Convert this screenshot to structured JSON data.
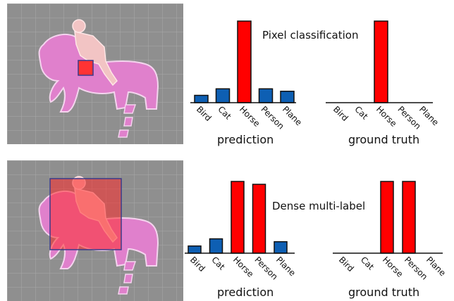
{
  "colors": {
    "background_gray": "#8f8f8f",
    "grid": "#a8a8a8",
    "horse_mask": "#e080cc",
    "person_mask": "#f2c4c4",
    "pixel_box": "#ff3333",
    "dense_box": "#ff2a2a",
    "box_outline": "#3a3a8a",
    "blue_bar": "#0e5fb3",
    "red_bar": "#ff0000",
    "bar_outline": "#111111"
  },
  "icons": [
    "horse-rider-segmentation-image",
    "pixel-box",
    "dense-box"
  ],
  "panels": [
    {
      "title": "Pixel  classification",
      "prediction_label": "prediction",
      "ground_truth_label": "ground truth"
    },
    {
      "title": "Dense multi-label",
      "prediction_label": "prediction",
      "ground_truth_label": "ground truth"
    }
  ],
  "chart_data": [
    {
      "type": "bar",
      "panel": "pixel-prediction",
      "categories": [
        "Bird",
        "Cat",
        "Horse",
        "Person",
        "Plane"
      ],
      "values": [
        0.09,
        0.17,
        1.0,
        0.17,
        0.14
      ],
      "colors": [
        "blue",
        "blue",
        "red",
        "blue",
        "blue"
      ]
    },
    {
      "type": "bar",
      "panel": "pixel-ground-truth",
      "categories": [
        "Bird",
        "Cat",
        "Horse",
        "Person",
        "Plane"
      ],
      "values": [
        0,
        0,
        1.0,
        0,
        0
      ],
      "colors": [
        "blue",
        "blue",
        "red",
        "blue",
        "blue"
      ]
    },
    {
      "type": "bar",
      "panel": "dense-prediction",
      "categories": [
        "Bird",
        "Cat",
        "Horse",
        "Person",
        "Plane"
      ],
      "values": [
        0.1,
        0.2,
        1.0,
        0.96,
        0.16
      ],
      "colors": [
        "blue",
        "blue",
        "red",
        "red",
        "blue"
      ]
    },
    {
      "type": "bar",
      "panel": "dense-ground-truth",
      "categories": [
        "Bird",
        "Cat",
        "Horse",
        "Person",
        "Plane"
      ],
      "values": [
        0,
        0,
        1.0,
        1.0,
        0
      ],
      "colors": [
        "blue",
        "blue",
        "red",
        "red",
        "blue"
      ]
    }
  ]
}
